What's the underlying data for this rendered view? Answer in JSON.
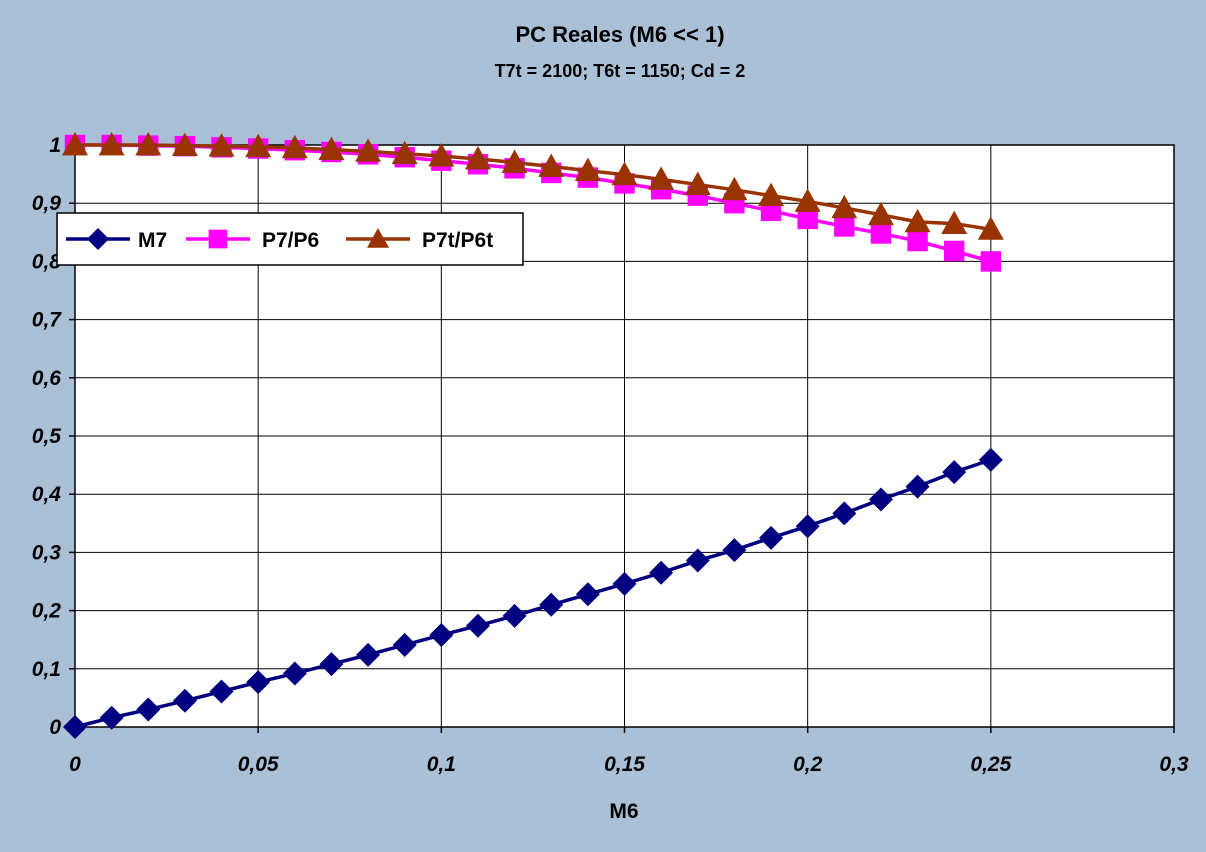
{
  "chart_data": {
    "type": "line",
    "title": "PC Reales (M6 << 1)",
    "subtitle": "T7t = 2100; T6t = 1150; Cd = 2",
    "xlabel": "M6",
    "ylabel": "",
    "xlim": [
      0,
      0.3
    ],
    "ylim": [
      0,
      1
    ],
    "x_ticks": [
      "0",
      "0,05",
      "0,1",
      "0,15",
      "0,2",
      "0,25",
      "0,3"
    ],
    "y_ticks": [
      "0",
      "0,1",
      "0,2",
      "0,3",
      "0,4",
      "0,5",
      "0,6",
      "0,7",
      "0,8",
      "0,9",
      "1"
    ],
    "grid": true,
    "legend_position": "top-left",
    "x": [
      0,
      0.01,
      0.02,
      0.03,
      0.04,
      0.05,
      0.06,
      0.07,
      0.08,
      0.09,
      0.1,
      0.11,
      0.12,
      0.13,
      0.14,
      0.15,
      0.16,
      0.17,
      0.18,
      0.19,
      0.2,
      0.21,
      0.22,
      0.23,
      0.24,
      0.25
    ],
    "series": [
      {
        "name": "M7",
        "color": "#000080",
        "marker": "diamond",
        "values": [
          0,
          0.016,
          0.03,
          0.045,
          0.061,
          0.077,
          0.092,
          0.108,
          0.124,
          0.141,
          0.158,
          0.174,
          0.191,
          0.21,
          0.228,
          0.246,
          0.265,
          0.286,
          0.304,
          0.325,
          0.345,
          0.367,
          0.391,
          0.413,
          0.438,
          0.459
        ]
      },
      {
        "name": "P7/P6",
        "color": "#ff00ff",
        "marker": "square",
        "values": [
          1,
          1,
          0.999,
          0.998,
          0.996,
          0.994,
          0.991,
          0.988,
          0.984,
          0.979,
          0.973,
          0.967,
          0.96,
          0.952,
          0.944,
          0.934,
          0.924,
          0.913,
          0.9,
          0.887,
          0.873,
          0.86,
          0.848,
          0.835,
          0.818,
          0.8
        ]
      },
      {
        "name": "P7t/P6t",
        "color": "#993300",
        "marker": "triangle",
        "values": [
          1,
          1,
          1,
          0.999,
          0.998,
          0.997,
          0.995,
          0.992,
          0.989,
          0.985,
          0.981,
          0.976,
          0.97,
          0.963,
          0.956,
          0.949,
          0.941,
          0.932,
          0.923,
          0.913,
          0.903,
          0.892,
          0.88,
          0.868,
          0.865,
          0.855
        ]
      }
    ]
  }
}
